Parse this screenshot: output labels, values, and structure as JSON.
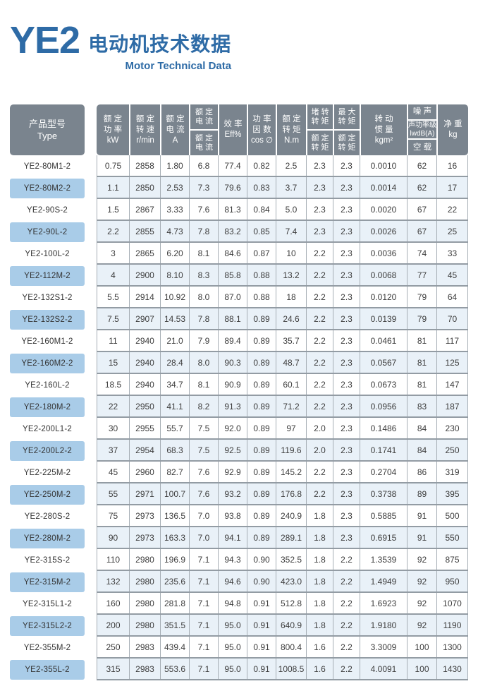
{
  "page": {
    "title": "YE2",
    "subtitle_cn": "电动机技术数据",
    "subtitle_en": "Motor Technical Data"
  },
  "colors": {
    "accent_blue": "#2e6ba6",
    "header_bg": "#7a848e",
    "header_text": "#ffffff",
    "type_chip_bg": "#a9cce8",
    "alt_row_bg": "#e9f1f8",
    "h_line": "#939ca4",
    "v_line": "#a6aeb5"
  },
  "table": {
    "columns": [
      {
        "key": "type",
        "lines": [
          "产品型号",
          "Type"
        ]
      },
      {
        "key": "rated-power",
        "lines": [
          "额 定",
          "功 率",
          "kW"
        ]
      },
      {
        "key": "rated-speed",
        "lines": [
          "额 定",
          "转 速",
          "r/min"
        ]
      },
      {
        "key": "rated-current",
        "lines": [
          "额 定",
          "电 流",
          "A"
        ]
      },
      {
        "key": "current-ratio",
        "top": [
          "额 定",
          "电 流"
        ],
        "bottom": [
          "额 定",
          "电 流"
        ]
      },
      {
        "key": "efficiency",
        "lines": [
          "效 率",
          "Eff%"
        ]
      },
      {
        "key": "power-factor",
        "lines": [
          "功 率",
          "因 数",
          "cos ∅"
        ]
      },
      {
        "key": "rated-torque",
        "lines": [
          "额 定",
          "转 矩",
          "N.m"
        ]
      },
      {
        "key": "locked-rotor-torque-ratio",
        "top": [
          "堵 转",
          "转 矩"
        ],
        "bottom": [
          "额 定",
          "转 矩"
        ]
      },
      {
        "key": "max-torque-ratio",
        "top": [
          "最 大",
          "转 矩"
        ],
        "bottom": [
          "额 定",
          "转 矩"
        ]
      },
      {
        "key": "inertia",
        "lines": [
          "转 动",
          "惯 量",
          "kgm²"
        ]
      },
      {
        "key": "noise",
        "top": "噪 声",
        "mid": [
          "声功率级",
          "lwdB(A)"
        ],
        "bottom": "空 载"
      },
      {
        "key": "weight",
        "lines": [
          "净 重",
          "kg"
        ]
      }
    ],
    "rows": [
      [
        "YE2-80M1-2",
        "0.75",
        "2858",
        "1.80",
        "6.8",
        "77.4",
        "0.82",
        "2.5",
        "2.3",
        "2.3",
        "0.0010",
        "62",
        "16"
      ],
      [
        "YE2-80M2-2",
        "1.1",
        "2850",
        "2.53",
        "7.3",
        "79.6",
        "0.83",
        "3.7",
        "2.3",
        "2.3",
        "0.0014",
        "62",
        "17"
      ],
      [
        "YE2-90S-2",
        "1.5",
        "2867",
        "3.33",
        "7.6",
        "81.3",
        "0.84",
        "5.0",
        "2.3",
        "2.3",
        "0.0020",
        "67",
        "22"
      ],
      [
        "YE2-90L-2",
        "2.2",
        "2855",
        "4.73",
        "7.8",
        "83.2",
        "0.85",
        "7.4",
        "2.3",
        "2.3",
        "0.0026",
        "67",
        "25"
      ],
      [
        "YE2-100L-2",
        "3",
        "2865",
        "6.20",
        "8.1",
        "84.6",
        "0.87",
        "10",
        "2.2",
        "2.3",
        "0.0036",
        "74",
        "33"
      ],
      [
        "YE2-112M-2",
        "4",
        "2900",
        "8.10",
        "8.3",
        "85.8",
        "0.88",
        "13.2",
        "2.2",
        "2.3",
        "0.0068",
        "77",
        "45"
      ],
      [
        "YE2-132S1-2",
        "5.5",
        "2914",
        "10.92",
        "8.0",
        "87.0",
        "0.88",
        "18",
        "2.2",
        "2.3",
        "0.0120",
        "79",
        "64"
      ],
      [
        "YE2-132S2-2",
        "7.5",
        "2907",
        "14.53",
        "7.8",
        "88.1",
        "0.89",
        "24.6",
        "2.2",
        "2.3",
        "0.0139",
        "79",
        "70"
      ],
      [
        "YE2-160M1-2",
        "11",
        "2940",
        "21.0",
        "7.9",
        "89.4",
        "0.89",
        "35.7",
        "2.2",
        "2.3",
        "0.0461",
        "81",
        "117"
      ],
      [
        "YE2-160M2-2",
        "15",
        "2940",
        "28.4",
        "8.0",
        "90.3",
        "0.89",
        "48.7",
        "2.2",
        "2.3",
        "0.0567",
        "81",
        "125"
      ],
      [
        "YE2-160L-2",
        "18.5",
        "2940",
        "34.7",
        "8.1",
        "90.9",
        "0.89",
        "60.1",
        "2.2",
        "2.3",
        "0.0673",
        "81",
        "147"
      ],
      [
        "YE2-180M-2",
        "22",
        "2950",
        "41.1",
        "8.2",
        "91.3",
        "0.89",
        "71.2",
        "2.2",
        "2.3",
        "0.0956",
        "83",
        "187"
      ],
      [
        "YE2-200L1-2",
        "30",
        "2955",
        "55.7",
        "7.5",
        "92.0",
        "0.89",
        "97",
        "2.0",
        "2.3",
        "0.1486",
        "84",
        "230"
      ],
      [
        "YE2-200L2-2",
        "37",
        "2954",
        "68.3",
        "7.5",
        "92.5",
        "0.89",
        "119.6",
        "2.0",
        "2.3",
        "0.1741",
        "84",
        "250"
      ],
      [
        "YE2-225M-2",
        "45",
        "2960",
        "82.7",
        "7.6",
        "92.9",
        "0.89",
        "145.2",
        "2.2",
        "2.3",
        "0.2704",
        "86",
        "319"
      ],
      [
        "YE2-250M-2",
        "55",
        "2971",
        "100.7",
        "7.6",
        "93.2",
        "0.89",
        "176.8",
        "2.2",
        "2.3",
        "0.3738",
        "89",
        "395"
      ],
      [
        "YE2-280S-2",
        "75",
        "2973",
        "136.5",
        "7.0",
        "93.8",
        "0.89",
        "240.9",
        "1.8",
        "2.3",
        "0.5885",
        "91",
        "500"
      ],
      [
        "YE2-280M-2",
        "90",
        "2973",
        "163.3",
        "7.0",
        "94.1",
        "0.89",
        "289.1",
        "1.8",
        "2.3",
        "0.6915",
        "91",
        "550"
      ],
      [
        "YE2-315S-2",
        "110",
        "2980",
        "196.9",
        "7.1",
        "94.3",
        "0.90",
        "352.5",
        "1.8",
        "2.2",
        "1.3539",
        "92",
        "875"
      ],
      [
        "YE2-315M-2",
        "132",
        "2980",
        "235.6",
        "7.1",
        "94.6",
        "0.90",
        "423.0",
        "1.8",
        "2.2",
        "1.4949",
        "92",
        "950"
      ],
      [
        "YE2-315L1-2",
        "160",
        "2980",
        "281.8",
        "7.1",
        "94.8",
        "0.91",
        "512.8",
        "1.8",
        "2.2",
        "1.6923",
        "92",
        "1070"
      ],
      [
        "YE2-315L2-2",
        "200",
        "2980",
        "351.5",
        "7.1",
        "95.0",
        "0.91",
        "640.9",
        "1.8",
        "2.2",
        "1.9180",
        "92",
        "1190"
      ],
      [
        "YE2-355M-2",
        "250",
        "2983",
        "439.4",
        "7.1",
        "95.0",
        "0.91",
        "800.4",
        "1.6",
        "2.2",
        "3.3009",
        "100",
        "1300"
      ],
      [
        "YE2-355L-2",
        "315",
        "2983",
        "553.6",
        "7.1",
        "95.0",
        "0.91",
        "1008.5",
        "1.6",
        "2.2",
        "4.0091",
        "100",
        "1430"
      ]
    ]
  }
}
